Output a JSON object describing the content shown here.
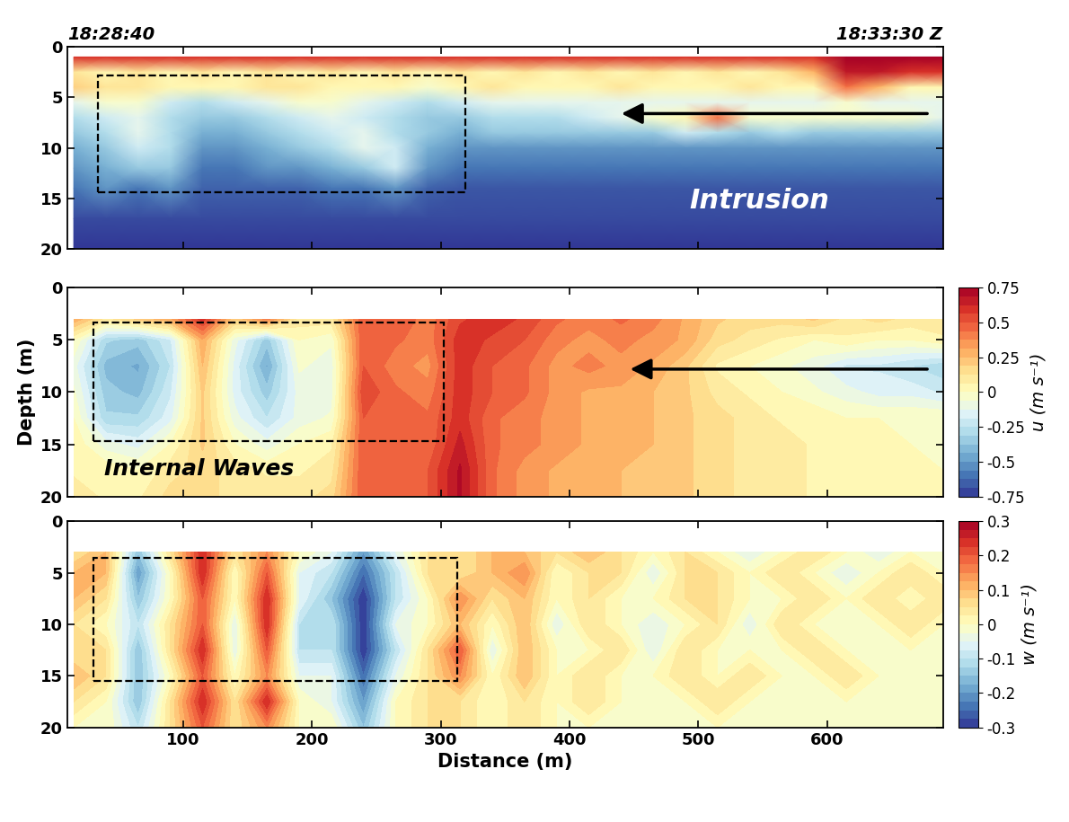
{
  "chart_data": [
    {
      "type": "heatmap",
      "annotations": [
        "18:28:40",
        "18:33:30 Z",
        "Intrusion"
      ],
      "x": [
        15,
        40,
        65,
        90,
        115,
        140,
        165,
        190,
        215,
        240,
        265,
        290,
        315,
        340,
        365,
        390,
        415,
        440,
        465,
        490,
        515,
        540,
        565,
        590,
        615,
        640,
        665,
        690
      ],
      "y": [
        1,
        2.5,
        4,
        5.5,
        7,
        8.5,
        10,
        12,
        14,
        17,
        20
      ],
      "cells": [
        [
          0.9,
          0.9,
          0.9,
          0.9,
          0.9,
          0.9,
          0.9,
          0.9,
          0.9,
          0.9,
          0.9,
          0.9,
          0.9,
          0.9,
          0.9,
          0.9,
          0.9,
          0.9,
          0.9,
          0.9,
          0.9,
          0.9,
          0.9,
          0.9,
          1.0,
          1.0,
          1.0,
          1.0
        ],
        [
          0.6,
          0.55,
          0.6,
          0.55,
          0.6,
          0.55,
          0.6,
          0.55,
          0.6,
          0.55,
          0.6,
          0.55,
          0.6,
          0.55,
          0.6,
          0.55,
          0.6,
          0.55,
          0.6,
          0.55,
          0.6,
          0.55,
          0.6,
          0.7,
          0.95,
          0.95,
          0.9,
          0.9
        ],
        [
          0.65,
          0.6,
          0.6,
          0.55,
          0.55,
          0.55,
          0.6,
          0.6,
          0.55,
          0.55,
          0.55,
          0.5,
          0.55,
          0.6,
          0.55,
          0.55,
          0.55,
          0.6,
          0.55,
          0.55,
          0.55,
          0.6,
          0.55,
          0.55,
          0.8,
          0.7,
          0.55,
          0.55
        ],
        [
          0.45,
          0.5,
          0.5,
          0.4,
          0.35,
          0.4,
          0.45,
          0.5,
          0.5,
          0.45,
          0.4,
          0.35,
          0.4,
          0.45,
          0.45,
          0.45,
          0.45,
          0.45,
          0.45,
          0.45,
          0.45,
          0.45,
          0.45,
          0.45,
          0.5,
          0.45,
          0.45,
          0.45
        ],
        [
          0.35,
          0.4,
          0.45,
          0.35,
          0.3,
          0.3,
          0.35,
          0.4,
          0.45,
          0.4,
          0.35,
          0.3,
          0.3,
          0.35,
          0.35,
          0.35,
          0.4,
          0.45,
          0.5,
          0.55,
          0.8,
          0.5,
          0.5,
          0.5,
          0.5,
          0.5,
          0.5,
          0.45
        ],
        [
          0.3,
          0.35,
          0.45,
          0.35,
          0.25,
          0.25,
          0.3,
          0.35,
          0.4,
          0.45,
          0.35,
          0.3,
          0.25,
          0.3,
          0.3,
          0.3,
          0.3,
          0.3,
          0.3,
          0.4,
          0.35,
          0.3,
          0.35,
          0.3,
          0.3,
          0.3,
          0.3,
          0.3
        ],
        [
          0.25,
          0.3,
          0.4,
          0.35,
          0.2,
          0.2,
          0.25,
          0.3,
          0.35,
          0.45,
          0.4,
          0.25,
          0.2,
          0.2,
          0.2,
          0.2,
          0.2,
          0.2,
          0.2,
          0.2,
          0.2,
          0.2,
          0.2,
          0.2,
          0.2,
          0.2,
          0.2,
          0.2
        ],
        [
          0.2,
          0.25,
          0.3,
          0.3,
          0.15,
          0.15,
          0.2,
          0.2,
          0.25,
          0.3,
          0.4,
          0.2,
          0.15,
          0.15,
          0.15,
          0.15,
          0.15,
          0.15,
          0.15,
          0.15,
          0.15,
          0.15,
          0.15,
          0.15,
          0.15,
          0.15,
          0.15,
          0.15
        ],
        [
          0.15,
          0.2,
          0.15,
          0.2,
          0.12,
          0.12,
          0.12,
          0.12,
          0.15,
          0.15,
          0.2,
          0.12,
          0.1,
          0.1,
          0.1,
          0.1,
          0.1,
          0.1,
          0.1,
          0.1,
          0.1,
          0.1,
          0.1,
          0.1,
          0.1,
          0.1,
          0.1,
          0.1
        ],
        [
          0.08,
          0.08,
          0.08,
          0.08,
          0.08,
          0.08,
          0.08,
          0.08,
          0.08,
          0.08,
          0.08,
          0.08,
          0.08,
          0.08,
          0.08,
          0.08,
          0.08,
          0.08,
          0.08,
          0.08,
          0.08,
          0.08,
          0.08,
          0.08,
          0.08,
          0.08,
          0.08,
          0.08
        ],
        [
          0.05,
          0.05,
          0.05,
          0.05,
          0.05,
          0.05,
          0.05,
          0.05,
          0.05,
          0.05,
          0.05,
          0.05,
          0.05,
          0.05,
          0.05,
          0.05,
          0.05,
          0.05,
          0.05,
          0.05,
          0.05,
          0.05,
          0.05,
          0.05,
          0.05,
          0.05,
          0.05,
          0.05
        ]
      ],
      "xlim": [
        10,
        690
      ],
      "xticks": [
        100,
        200,
        300,
        400,
        500,
        600
      ],
      "ylim": [
        20,
        0
      ],
      "yticks": [
        0,
        5,
        10,
        15,
        20
      ],
      "tick_labels": "y"
    },
    {
      "type": "contour",
      "ylabel": "Depth (m)",
      "annotations": [
        "Internal Waves"
      ],
      "x": [
        15,
        40,
        65,
        90,
        115,
        140,
        165,
        190,
        215,
        240,
        265,
        290,
        315,
        340,
        365,
        390,
        415,
        440,
        465,
        490,
        515,
        540,
        565,
        590,
        615,
        640,
        665,
        690
      ],
      "y": [
        3,
        5,
        7.5,
        10,
        12.5,
        15,
        17.5,
        20
      ],
      "cells": [
        [
          0.3,
          0.1,
          0.2,
          0.3,
          0.6,
          0.2,
          0.4,
          0.1,
          0.1,
          0.5,
          0.5,
          0.4,
          0.55,
          0.6,
          0.55,
          0.45,
          0.4,
          0.45,
          0.4,
          0.3,
          0.2,
          0.15,
          0.15,
          0.2,
          0.1,
          0.15,
          0.1,
          0.1
        ],
        [
          0.0,
          -0.3,
          -0.35,
          -0.2,
          0.3,
          -0.1,
          -0.35,
          0.0,
          -0.05,
          0.5,
          0.45,
          0.4,
          0.6,
          0.55,
          0.5,
          0.4,
          0.35,
          0.4,
          0.35,
          0.3,
          0.15,
          0.1,
          0.05,
          0.0,
          0.05,
          0.0,
          0.0,
          0.05
        ],
        [
          -0.1,
          -0.4,
          -0.45,
          -0.25,
          0.25,
          -0.15,
          -0.45,
          -0.05,
          -0.1,
          0.5,
          0.4,
          0.35,
          0.6,
          0.5,
          0.45,
          0.35,
          0.4,
          0.35,
          0.3,
          0.2,
          0.05,
          0.0,
          -0.05,
          -0.1,
          -0.2,
          -0.2,
          -0.25,
          -0.3
        ],
        [
          -0.05,
          -0.35,
          -0.4,
          -0.2,
          0.2,
          -0.15,
          -0.35,
          -0.1,
          -0.1,
          0.55,
          0.45,
          0.4,
          0.6,
          0.5,
          0.45,
          0.35,
          0.3,
          0.3,
          0.25,
          0.2,
          0.1,
          0.05,
          0.0,
          -0.05,
          -0.1,
          -0.15,
          -0.15,
          -0.2
        ],
        [
          0.0,
          -0.3,
          -0.3,
          -0.15,
          0.2,
          -0.1,
          -0.25,
          -0.1,
          -0.05,
          0.5,
          0.45,
          0.45,
          0.6,
          0.45,
          0.4,
          0.35,
          0.3,
          0.3,
          0.25,
          0.2,
          0.15,
          0.1,
          0.05,
          0.05,
          0.0,
          0.0,
          0.0,
          0.0
        ],
        [
          0.05,
          -0.1,
          -0.15,
          0.0,
          0.2,
          0.0,
          -0.1,
          0.0,
          0.05,
          0.5,
          0.45,
          0.45,
          0.65,
          0.45,
          0.4,
          0.35,
          0.3,
          0.3,
          0.25,
          0.2,
          0.15,
          0.1,
          0.1,
          0.05,
          0.05,
          0.05,
          0.0,
          0.0
        ],
        [
          0.05,
          0.05,
          0.0,
          0.1,
          0.15,
          0.1,
          0.05,
          0.05,
          0.1,
          0.5,
          0.45,
          0.5,
          0.7,
          0.45,
          0.35,
          0.3,
          0.3,
          0.25,
          0.25,
          0.2,
          0.15,
          0.1,
          0.1,
          0.05,
          0.05,
          0.05,
          0.05,
          0.0
        ],
        [
          0.1,
          0.05,
          0.05,
          0.15,
          0.15,
          0.1,
          0.1,
          0.1,
          0.15,
          0.5,
          0.45,
          0.5,
          0.7,
          0.45,
          0.35,
          0.3,
          0.3,
          0.25,
          0.25,
          0.2,
          0.15,
          0.1,
          0.1,
          0.05,
          0.05,
          0.05,
          0.05,
          0.05
        ]
      ],
      "colorbar_label": "u (m s⁻¹)",
      "color_range": [
        -0.75,
        0.75
      ],
      "color_ticks": [
        -0.75,
        -0.5,
        -0.25,
        0,
        0.25,
        0.5,
        0.75
      ],
      "xlim": [
        10,
        690
      ],
      "xticks": [
        100,
        200,
        300,
        400,
        500,
        600
      ],
      "ylim": [
        20,
        0
      ],
      "yticks": [
        0,
        5,
        10,
        15,
        20
      ],
      "tick_labels": "y"
    },
    {
      "type": "contour",
      "xlabel": "Distance (m)",
      "x": [
        15,
        40,
        65,
        90,
        115,
        140,
        165,
        190,
        215,
        240,
        265,
        290,
        315,
        340,
        365,
        390,
        415,
        440,
        465,
        490,
        515,
        540,
        565,
        590,
        615,
        640,
        665,
        690
      ],
      "y": [
        3,
        5,
        7.5,
        10,
        12.5,
        15,
        17.5,
        20
      ],
      "cells": [
        [
          0.05,
          0.1,
          -0.15,
          0.05,
          0.25,
          0.05,
          0.15,
          0.0,
          -0.05,
          -0.2,
          -0.05,
          0.05,
          0.05,
          0.1,
          0.1,
          0.05,
          0.1,
          0.05,
          0.0,
          0.05,
          0.0,
          -0.05,
          0.0,
          0.05,
          0.0,
          -0.05,
          0.0,
          0.0
        ],
        [
          0.1,
          0.1,
          -0.2,
          0.0,
          0.25,
          0.0,
          0.2,
          -0.05,
          -0.1,
          -0.25,
          -0.1,
          0.05,
          0.05,
          0.1,
          0.15,
          0.0,
          0.05,
          0.05,
          -0.05,
          0.05,
          0.05,
          0.0,
          0.05,
          0.0,
          -0.05,
          0.0,
          0.05,
          0.0
        ],
        [
          0.1,
          0.05,
          -0.15,
          0.0,
          0.2,
          0.0,
          0.25,
          -0.05,
          -0.15,
          -0.3,
          -0.1,
          0.0,
          0.15,
          0.05,
          0.1,
          0.0,
          0.05,
          0.0,
          0.0,
          0.05,
          0.05,
          0.0,
          0.0,
          0.05,
          0.0,
          0.05,
          0.0,
          0.05
        ],
        [
          0.05,
          0.0,
          -0.1,
          0.05,
          0.2,
          -0.05,
          0.25,
          -0.1,
          -0.1,
          -0.3,
          -0.05,
          0.0,
          0.1,
          0.0,
          0.1,
          -0.05,
          0.05,
          0.0,
          -0.05,
          0.0,
          0.05,
          -0.05,
          0.05,
          0.0,
          0.0,
          0.0,
          0.05,
          0.0
        ],
        [
          0.05,
          0.05,
          -0.15,
          0.05,
          0.25,
          -0.05,
          0.2,
          -0.1,
          -0.1,
          -0.3,
          -0.1,
          0.05,
          0.2,
          -0.05,
          0.1,
          0.0,
          0.0,
          0.05,
          -0.05,
          0.05,
          0.0,
          0.0,
          0.0,
          0.05,
          0.0,
          0.0,
          0.0,
          0.0
        ],
        [
          0.1,
          0.05,
          -0.15,
          0.0,
          0.2,
          0.0,
          0.15,
          -0.05,
          -0.05,
          -0.25,
          -0.05,
          0.05,
          0.15,
          0.0,
          0.1,
          0.0,
          0.05,
          0.0,
          0.0,
          0.05,
          0.0,
          0.05,
          0.0,
          0.0,
          0.05,
          0.0,
          0.0,
          0.0
        ],
        [
          0.05,
          0.0,
          -0.15,
          0.05,
          0.25,
          0.05,
          0.25,
          0.0,
          -0.05,
          -0.2,
          0.0,
          0.05,
          0.05,
          0.0,
          0.05,
          0.0,
          0.05,
          0.0,
          0.0,
          0.0,
          0.05,
          0.0,
          0.0,
          0.0,
          0.0,
          0.0,
          0.0,
          0.0
        ],
        [
          0.0,
          0.0,
          -0.1,
          0.05,
          0.2,
          0.05,
          0.15,
          0.0,
          0.0,
          -0.15,
          0.0,
          0.05,
          0.05,
          0.0,
          0.05,
          0.0,
          0.0,
          0.0,
          0.0,
          0.0,
          0.0,
          0.0,
          0.0,
          0.0,
          0.0,
          0.0,
          0.0,
          0.0
        ]
      ],
      "colorbar_label": "w (m s⁻¹)",
      "color_range": [
        -0.3,
        0.3
      ],
      "color_ticks": [
        -0.3,
        -0.2,
        -0.1,
        0,
        0.1,
        0.2,
        0.3
      ],
      "xlim": [
        10,
        690
      ],
      "xticks": [
        100,
        200,
        300,
        400,
        500,
        600
      ],
      "ylim": [
        20,
        0
      ],
      "yticks": [
        0,
        5,
        10,
        15,
        20
      ]
    }
  ]
}
